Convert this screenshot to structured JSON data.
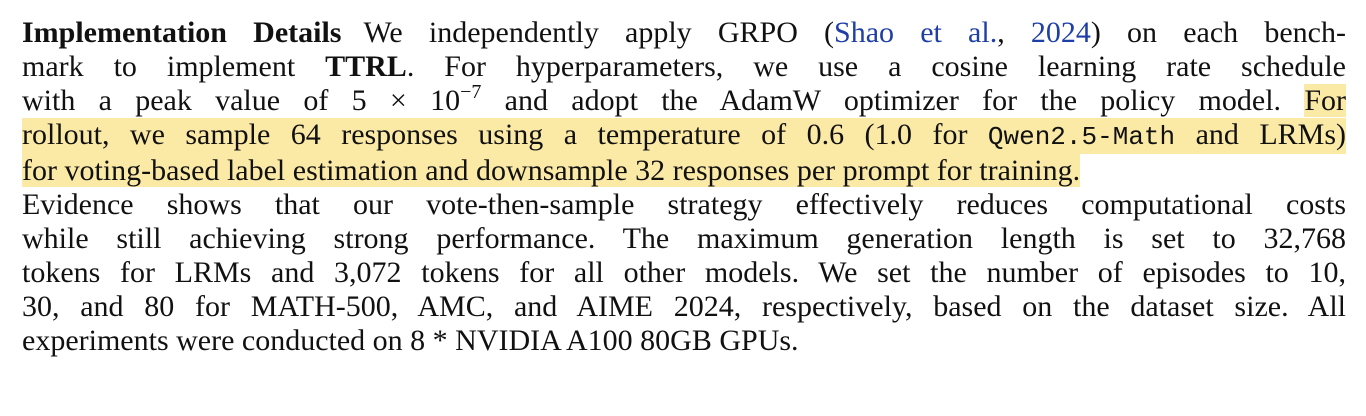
{
  "paragraph": {
    "heading": "Implementation Details",
    "l1_a": "We independently apply GRPO (",
    "l1_cite_author": "Shao et al.",
    "l1_cite_sep": ", ",
    "l1_cite_year": "2024",
    "l1_b": ") on each bench-",
    "l2_a": "mark to implement ",
    "l2_bold": "TTRL",
    "l2_b": ". For hyperparameters, we use a cosine learning rate schedule",
    "l3_a": "with a peak value of 5 × 10",
    "l3_sup": "−7",
    "l3_b": " and adopt the AdamW optimizer for the policy model. ",
    "l3_hl": "For",
    "l4_a": "rollout, we sample 64 responses using a temperature of 0.6 (1.0 for ",
    "l4_code": "Qwen2.5-Math",
    "l4_b": " and LRMs)",
    "l5": "for voting-based label estimation and downsample 32 responses per prompt for training.",
    "l6": "Evidence shows that our vote-then-sample strategy effectively reduces computational costs",
    "l7": "while still achieving strong performance. The maximum generation length is set to 32,768",
    "l8": "tokens for LRMs and 3,072 tokens for all other models. We set the number of episodes to 10,",
    "l9": "30, and 80 for MATH-500, AMC, and AIME 2024, respectively, based on the dataset size. All",
    "l10": "experiments were conducted on 8 * NVIDIA A100 80GB GPUs."
  },
  "colors": {
    "text": "#111111",
    "citation": "#1f3fa6",
    "highlight": "#fbe9a6"
  }
}
